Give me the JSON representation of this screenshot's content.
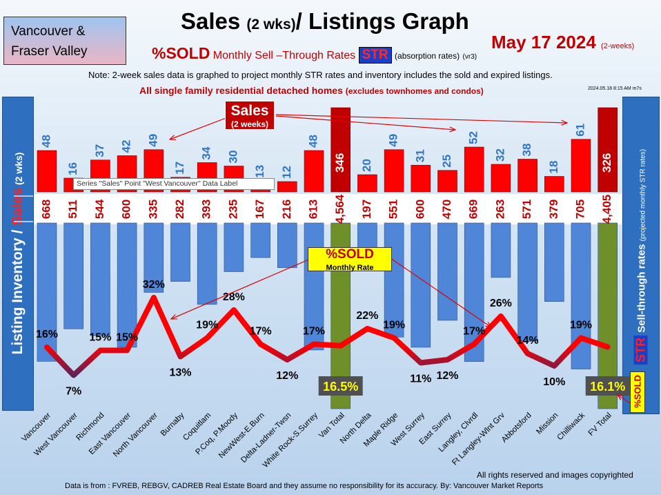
{
  "header": {
    "region_line1": "Vancouver &",
    "region_line2": "Fraser Valley",
    "title_main": "Sales",
    "title_small": "(2 wks)",
    "title_rest": "/ Listings Graph",
    "date": "May 17  2024",
    "date_note": "(2-weeks)",
    "sold_label": "%SOLD",
    "monthly_label": "Monthly Sell –Through Rates",
    "str_label": "STR",
    "absorption": "(absorption rates)",
    "version": "(vr3)",
    "note": "Note: 2-week sales data is graphed to project monthly STR rates and inventory includes the sold and expired listings.",
    "note2_main": "All single family residential detached homes",
    "note2_small": "(excludes townhomes and condos)",
    "stamp": "2024.05.18 8:15 AM m7s"
  },
  "axes": {
    "left_part1": "Listing Inventory / ",
    "left_part2": "Sales",
    "left_part3": " (2  wks)",
    "right_main": "Sell-through rates",
    "right_small": "(projected monthly STR rates)",
    "right_str": "STR",
    "right_sold": "%SOLD"
  },
  "callouts": {
    "sales_a": "Sales",
    "sales_b": "(2 weeks)",
    "sold_a": "%SOLD",
    "sold_b": "Monthly Rate",
    "tooltip": "Series \"Sales\" Point \"West Vancouver\" Data Label"
  },
  "footer": {
    "rights": "All rights reserved and  images copyrighted",
    "source": "Data is from : FVREB, REBGV, CADREB Real Estate Board and they assume no responsibility for its accuracy. By: Vancouver Market Reports"
  },
  "colors": {
    "sales_bar": "#ff0000",
    "total_sales_bar": "#c00000",
    "listing_bar": "#4f86d8",
    "total_listing_bar": "#6f8f2a",
    "sales_label": "#2f75c6",
    "inventory_label": "#c00000",
    "str_line_high": "#ff0000",
    "str_line_low": "#1f2f7a",
    "total_str_bg": "#505050",
    "total_str_text": "#ffff00"
  },
  "chart_data": {
    "type": "bar",
    "categories": [
      "Vancouver",
      "West Vancouver",
      "Richmond",
      "East Vancouver",
      "North Vancouver",
      "Burnaby",
      "Coquitlam",
      "P.Coq, P.Moody",
      "NewWest-E.Burn",
      "Delta-Ladner-Twsn",
      "White Rock-S.Surrey",
      "Van Total",
      "North Delta",
      "Maple Ridge",
      "West Surrey",
      "East Surrey",
      "Langley, Clvrdl",
      "Ft Langley-Wlnt Grv",
      "Abbotsford",
      "Mission",
      "Chilliwack",
      "FV Total"
    ],
    "series": [
      {
        "name": "Sales",
        "values": [
          48,
          16,
          37,
          42,
          49,
          17,
          34,
          30,
          13,
          12,
          48,
          346,
          20,
          49,
          31,
          25,
          52,
          32,
          38,
          18,
          61,
          326
        ]
      },
      {
        "values": [
          668,
          511,
          544,
          600,
          335,
          282,
          393,
          235,
          167,
          216,
          613,
          4564,
          197,
          551,
          600,
          470,
          669,
          263,
          571,
          379,
          705,
          4405
        ]
      },
      {
        "name": "%SOLD",
        "values": [
          16,
          7,
          15,
          15,
          32,
          13,
          19,
          28,
          17,
          12,
          17,
          16.5,
          22,
          19,
          11,
          12,
          17,
          26,
          14,
          10,
          19,
          16.1
        ]
      }
    ],
    "value_labels": {
      "sales": [
        "48",
        "16",
        "37",
        "42",
        "49",
        "17",
        "34",
        "30",
        "13",
        "12",
        "48",
        "346",
        "20",
        "49",
        "31",
        "25",
        "52",
        "32",
        "38",
        "18",
        "61",
        "326"
      ],
      "inventory": [
        "668",
        "511",
        "544",
        "600",
        "335",
        "282",
        "393",
        "235",
        "167",
        "216",
        "613",
        "4,564",
        "197",
        "551",
        "600",
        "470",
        "669",
        "263",
        "571",
        "379",
        "705",
        "4,405"
      ],
      "str": [
        "16%",
        "7%",
        "15%",
        "15%",
        "32%",
        "13%",
        "19%",
        "28%",
        "17%",
        "12%",
        "17%",
        "16.5%",
        "22%",
        "19%",
        "11%",
        "12%",
        "17%",
        "26%",
        "14%",
        "10%",
        "19%",
        "16.1%"
      ]
    },
    "totals": [
      "Van Total",
      "FV Total"
    ]
  }
}
